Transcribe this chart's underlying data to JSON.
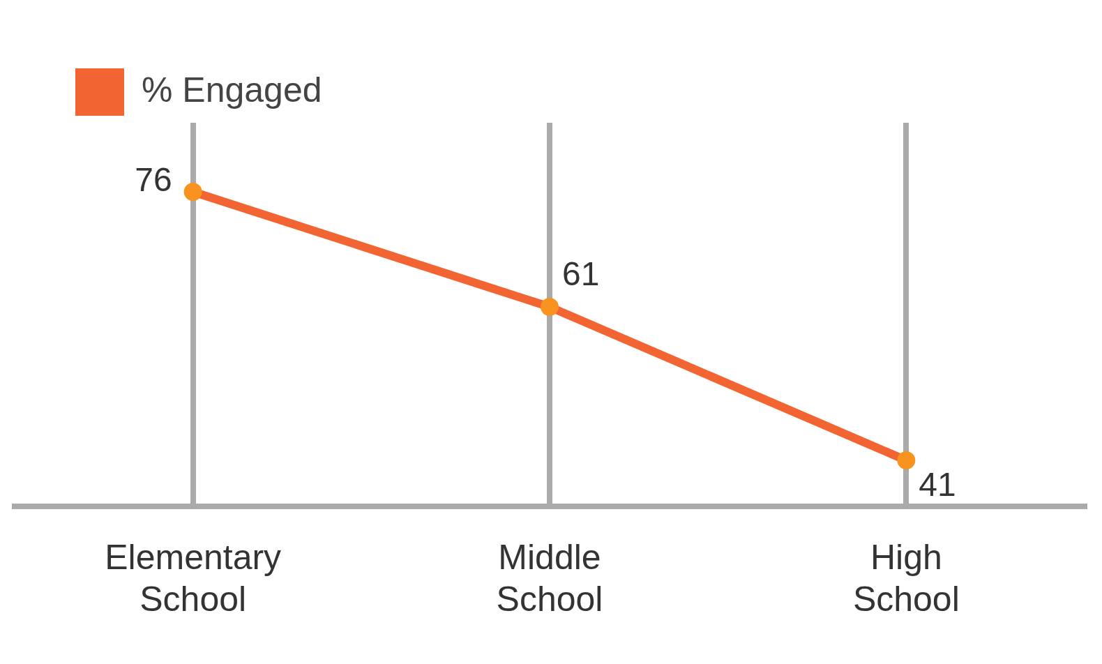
{
  "chart_data": {
    "type": "line",
    "categories": [
      "Elementary School",
      "Middle School",
      "High School"
    ],
    "series": [
      {
        "name": "% Engaged",
        "color": "#f26532",
        "values": [
          76,
          61,
          41
        ]
      }
    ],
    "data_labels": true,
    "grid": "x",
    "legend": "top left",
    "marker": "circle",
    "line_style": "solid"
  }
}
